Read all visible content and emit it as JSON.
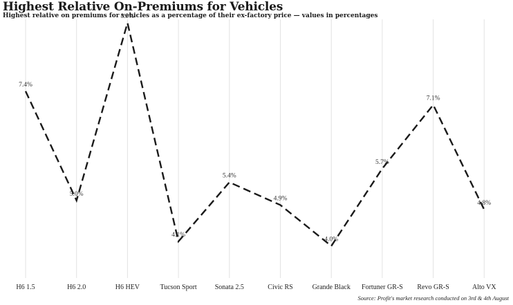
{
  "chart_data": {
    "type": "line",
    "title": "Highest Relative On-Premiums for Vehicles",
    "subtitle": "Highest relative on premiums for vehicles as a percentage of their ex-factory price — values in percentages",
    "source": "Source: Profit's market research conducted on 3rd & 4th August",
    "categories": [
      "H6 1.5",
      "H6 2.0",
      "H6 HEV",
      "Tucson Sport",
      "Sonata 2.5",
      "Civic RS",
      "Grande Black",
      "Fortuner GR-S",
      "Revo GR-S",
      "Alto VX"
    ],
    "values": [
      7.4,
      5.0,
      8.9,
      4.1,
      5.4,
      4.9,
      4.0,
      5.7,
      7.1,
      4.8
    ],
    "data_labels": [
      "7.4%",
      "5.0%",
      "8.9%",
      "4.1%",
      "5.4%",
      "4.9%",
      "4.0%",
      "5.7%",
      "7.1%",
      "4.8%"
    ],
    "ylim": [
      3.6,
      9.1
    ],
    "line_style": "dashed",
    "line_color": "#1a1a1a",
    "grid": "vertical",
    "grid_color": "#e2e2e2",
    "legend": "none"
  }
}
